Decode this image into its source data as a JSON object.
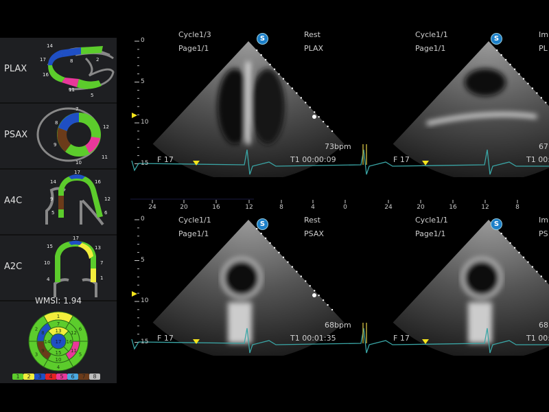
{
  "colors": {
    "score1": "#5ccc2c",
    "score2": "#f2ee3c",
    "score3": "#1f4fc4",
    "score4": "#e62222",
    "score5": "#e8389a",
    "score6": "#4aa8e0",
    "score7": "#6b3b1a",
    "score8": "#bdbdbd",
    "ecg": "#3aa6a6",
    "marker": "#f4e41c",
    "badge": "#1c7fc8"
  },
  "left_panel": {
    "views": [
      {
        "label": "PLAX",
        "segments": [
          "14",
          "17",
          "8",
          "2",
          "16",
          "11",
          "5"
        ]
      },
      {
        "label": "PSAX",
        "segments": [
          "7",
          "8",
          "12",
          "9",
          "11",
          "10"
        ]
      },
      {
        "label": "A4C",
        "segments": [
          "17",
          "14",
          "16",
          "9",
          "12",
          "5",
          "6"
        ]
      },
      {
        "label": "A2C",
        "segments": [
          "17",
          "15",
          "13",
          "10",
          "7",
          "4",
          "1"
        ]
      }
    ],
    "wmsi_label": "WMSI:",
    "wmsi_value": "1.94",
    "bullseye": {
      "1": 2,
      "2": 1,
      "3": 1,
      "4": 1,
      "5": 1,
      "6": 1,
      "7": 1,
      "8": 3,
      "9": 7,
      "10": 1,
      "11": 5,
      "12": 1,
      "13": 2,
      "14": 1,
      "15": 1,
      "16": 1,
      "17": 3
    },
    "legend": [
      "1",
      "2",
      "3",
      "4",
      "5",
      "6",
      "7",
      "8"
    ]
  },
  "panels": [
    {
      "cycle": "Cycle1/3",
      "page": "Page1/1",
      "stage": "Rest",
      "view": "PLAX",
      "bpm": "73bpm",
      "time": "T1 00:00:09",
      "frame": "F 17",
      "badge": "S"
    },
    {
      "cycle": "Cycle1/1",
      "page": "Page1/1",
      "stage": "Im",
      "view": "PL",
      "bpm": "67b",
      "time": "T1 00:0",
      "frame": "F 17",
      "badge": "S"
    },
    {
      "cycle": "Cycle1/1",
      "page": "Page1/1",
      "stage": "Rest",
      "view": "PSAX",
      "bpm": "68bpm",
      "time": "T1 00:01:35",
      "frame": "F 17",
      "badge": "S"
    },
    {
      "cycle": "Cycle1/1",
      "page": "Page1/1",
      "stage": "Im",
      "view": "PS",
      "bpm": "68b",
      "time": "T1 00:0",
      "frame": "F 17",
      "badge": "S"
    }
  ],
  "depth_ticks": [
    "0",
    "5",
    "10",
    "15"
  ],
  "time_axis": {
    "left": [
      "24",
      "20",
      "16",
      "12",
      "8",
      "4",
      "0"
    ],
    "right": [
      "24",
      "20",
      "16",
      "12",
      "8"
    ]
  }
}
